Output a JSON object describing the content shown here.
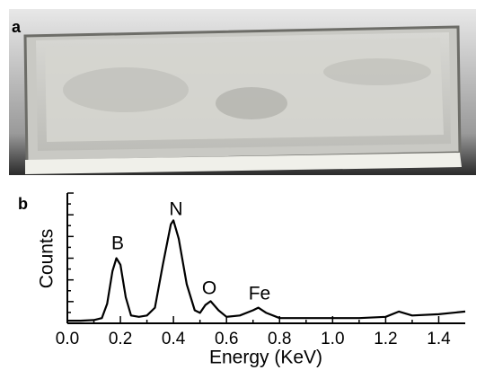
{
  "panel_labels": [
    "a",
    "b"
  ],
  "chart_data": {
    "type": "line",
    "xlabel": "Energy (KeV)",
    "ylabel": "Counts",
    "annotations": [
      "B",
      "N",
      "O",
      "Fe"
    ],
    "x": [
      0.0,
      0.05,
      0.1,
      0.13,
      0.15,
      0.17,
      0.185,
      0.2,
      0.22,
      0.24,
      0.27,
      0.3,
      0.33,
      0.36,
      0.39,
      0.4,
      0.42,
      0.45,
      0.48,
      0.5,
      0.52,
      0.54,
      0.57,
      0.6,
      0.65,
      0.7,
      0.72,
      0.75,
      0.8,
      0.85,
      0.9,
      1.0,
      1.1,
      1.2,
      1.25,
      1.3,
      1.4,
      1.5
    ],
    "series": [
      {
        "color": "#000000",
        "values": [
          2,
          2,
          2.5,
          4,
          15,
          40,
          50,
          45,
          20,
          6,
          5,
          6,
          12,
          45,
          76,
          79,
          65,
          30,
          10,
          8,
          14,
          17,
          10,
          5,
          6,
          10,
          12,
          8,
          4,
          4,
          4,
          4,
          4,
          5,
          9,
          6,
          7,
          9
        ]
      }
    ],
    "xlim": [
      0,
      1.5
    ],
    "ylim": [
      0,
      100
    ],
    "xticks": [
      {
        "value": 0,
        "label": "0.0"
      },
      0.2,
      0.4,
      0.6,
      0.8,
      {
        "value": 1,
        "label": "1.0"
      },
      1.2,
      1.4
    ]
  }
}
